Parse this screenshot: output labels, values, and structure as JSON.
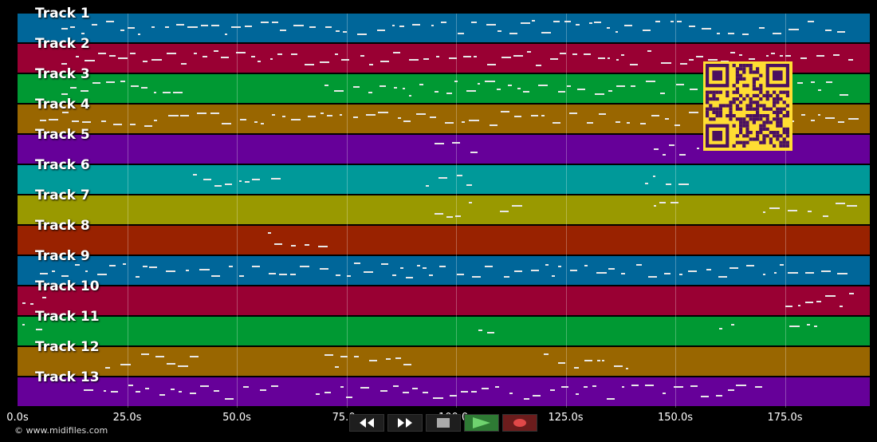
{
  "app": {
    "copyright": "© www.midifiles.com"
  },
  "tracks": [
    {
      "label": "Track 1",
      "color": "#006699"
    },
    {
      "label": "Track 2",
      "color": "#990033"
    },
    {
      "label": "Track 3",
      "color": "#009933"
    },
    {
      "label": "Track 4",
      "color": "#996600"
    },
    {
      "label": "Track 5",
      "color": "#660099"
    },
    {
      "label": "Track 6",
      "color": "#009999"
    },
    {
      "label": "Track 7",
      "color": "#999900"
    },
    {
      "label": "Track 8",
      "color": "#992200"
    },
    {
      "label": "Track 9",
      "color": "#006699"
    },
    {
      "label": "Track 10",
      "color": "#990033"
    },
    {
      "label": "Track 11",
      "color": "#009933"
    },
    {
      "label": "Track 12",
      "color": "#996600"
    },
    {
      "label": "Track 13",
      "color": "#660099"
    }
  ],
  "timeline": {
    "ticks": [
      "0.0s",
      "25.0s",
      "50.0s",
      "75.0s",
      "100.0s",
      "125.0s",
      "150.0s",
      "175.0s"
    ]
  },
  "transport": {
    "rewind_icon": "rewind-icon",
    "forward_icon": "fast-forward-icon",
    "stop_icon": "stop-icon",
    "play_icon": "play-icon",
    "record_icon": "record-icon",
    "play_color": "#2e7a34",
    "record_color": "#cc3333"
  },
  "overlay": {
    "qr_icon": "qr-code-icon",
    "qr_color": "#ffdd33"
  }
}
